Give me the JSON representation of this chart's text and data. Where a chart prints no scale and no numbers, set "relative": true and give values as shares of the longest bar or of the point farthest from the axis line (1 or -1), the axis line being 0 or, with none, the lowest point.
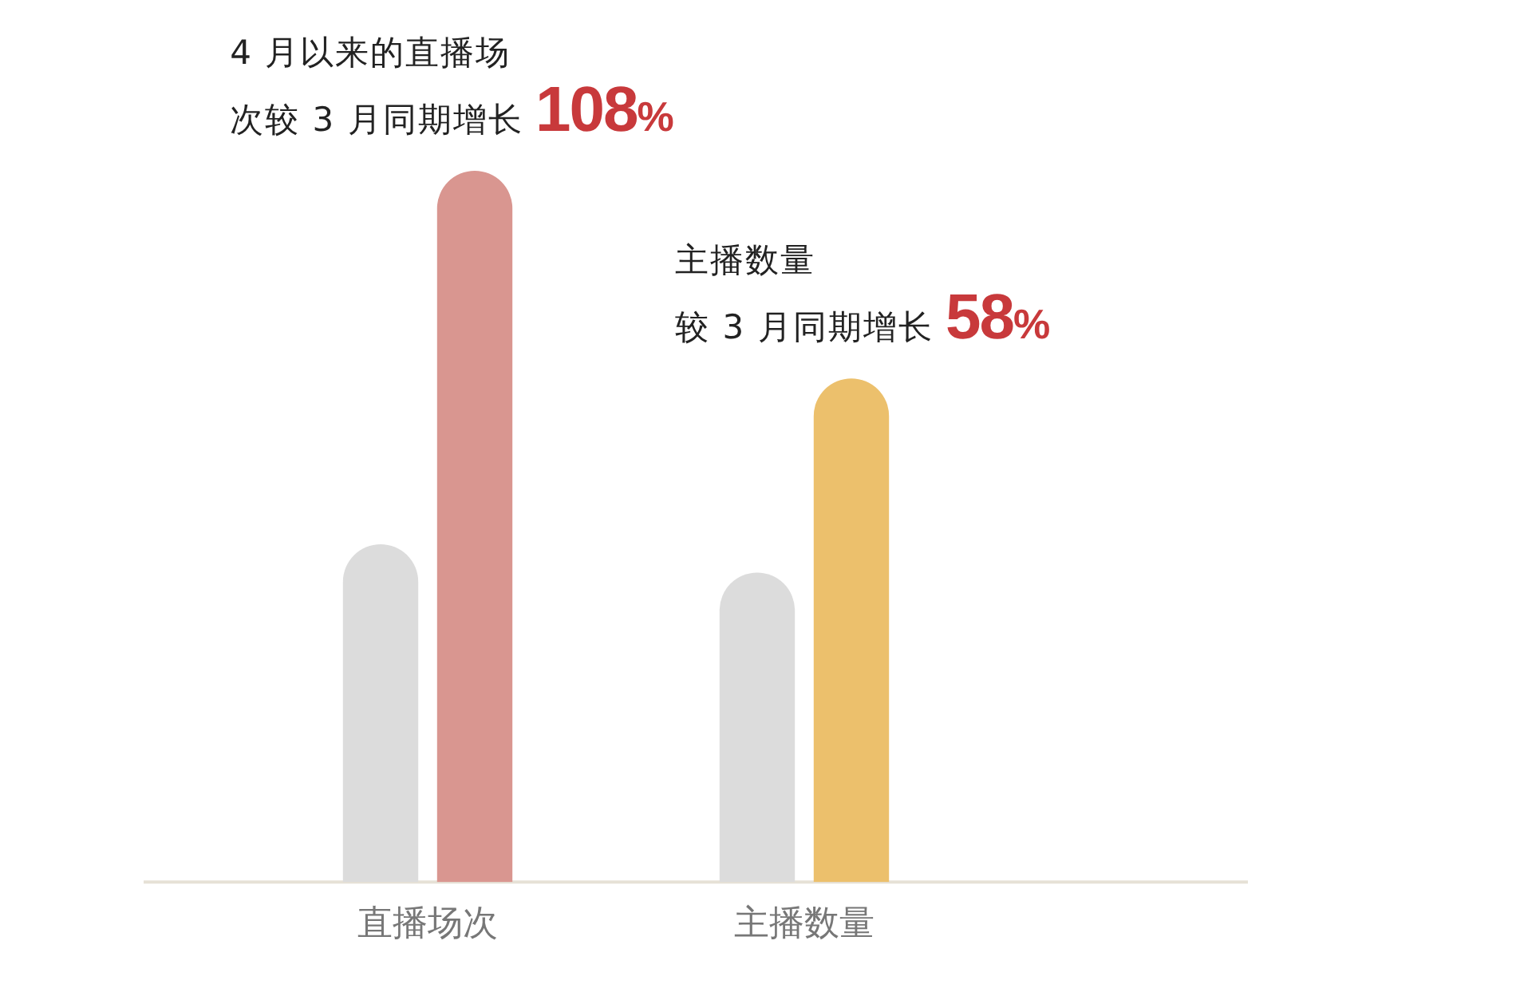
{
  "chart_data": {
    "type": "bar",
    "relative": true,
    "categories": [
      "直播场次",
      "主播数量"
    ],
    "series": [
      {
        "color": "#dcdcdc",
        "values": [
          0.475,
          0.435
        ]
      },
      {
        "colors": [
          "#d99690",
          "#ecc06c"
        ],
        "values": [
          1,
          0.708
        ]
      }
    ],
    "annotations": [
      "4 月以来的直播场次较 3 月同期增长 108%",
      "主播数量较 3 月同期增长 58%"
    ],
    "grid": false,
    "legend": false
  }
}
